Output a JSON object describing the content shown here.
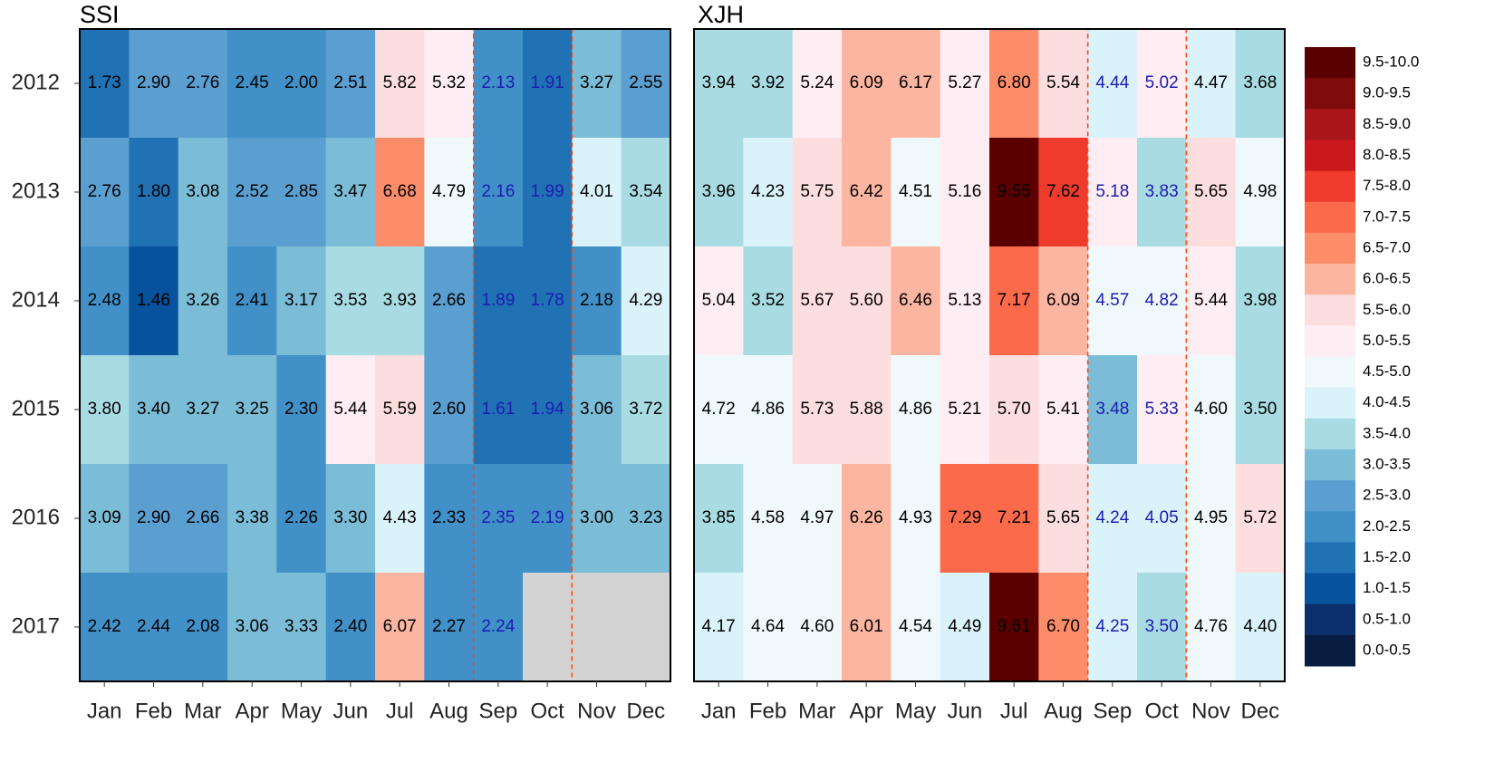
{
  "chart_data": [
    {
      "type": "heatmap",
      "title": "SSI",
      "x": [
        "Jan",
        "Feb",
        "Mar",
        "Apr",
        "May",
        "Jun",
        "Jul",
        "Aug",
        "Sep",
        "Oct",
        "Nov",
        "Dec"
      ],
      "y": [
        "2012",
        "2013",
        "2014",
        "2015",
        "2016",
        "2017"
      ],
      "values": [
        [
          1.73,
          2.9,
          2.76,
          2.45,
          2.0,
          2.51,
          5.82,
          5.32,
          2.13,
          1.91,
          3.27,
          2.55
        ],
        [
          2.76,
          1.8,
          3.08,
          2.52,
          2.85,
          3.47,
          6.68,
          4.79,
          2.16,
          1.99,
          4.01,
          3.54
        ],
        [
          2.48,
          1.46,
          3.26,
          2.41,
          3.17,
          3.53,
          3.93,
          2.66,
          1.89,
          1.78,
          2.18,
          4.29
        ],
        [
          3.8,
          3.4,
          3.27,
          3.25,
          2.3,
          5.44,
          5.59,
          2.6,
          1.61,
          1.94,
          3.06,
          3.72
        ],
        [
          3.09,
          2.9,
          2.66,
          3.38,
          2.26,
          3.3,
          4.43,
          2.33,
          2.35,
          2.19,
          3.0,
          3.23
        ],
        [
          2.42,
          2.44,
          2.08,
          3.06,
          3.33,
          2.4,
          6.07,
          2.27,
          2.24,
          null,
          null,
          null
        ]
      ],
      "value_labels": [
        [
          "1.73",
          "2.90",
          "2.76",
          "2.45",
          "2.00",
          "2.51",
          "5.82",
          "5.32",
          "2.13",
          "1.91",
          "3.27",
          "2.55"
        ],
        [
          "2.76",
          "1.80",
          "3.08",
          "2.52",
          "2.85",
          "3.47",
          "6.68",
          "4.79",
          "2.16",
          "1.99",
          "4.01",
          "3.54"
        ],
        [
          "2.48",
          "1.46",
          "3.26",
          "2.41",
          "3.17",
          "3.53",
          "3.93",
          "2.66",
          "1.89",
          "1.78",
          "2.18",
          "4.29"
        ],
        [
          "3.80",
          "3.40",
          "3.27",
          "3.25",
          "2.30",
          "5.44",
          "5.59",
          "2.60",
          "1.61",
          "1.94",
          "3.06",
          "3.72"
        ],
        [
          "3.09",
          "2.90",
          "2.66",
          "3.38",
          "2.26",
          "3.30",
          "4.43",
          "2.33",
          "2.35",
          "2.19",
          "3.00",
          "3.23"
        ],
        [
          "2.42",
          "2.44",
          "2.08",
          "3.06",
          "3.33",
          "2.40",
          "6.07",
          "2.27",
          "2.24",
          null,
          null,
          null
        ]
      ]
    },
    {
      "type": "heatmap",
      "title": "XJH",
      "x": [
        "Jan",
        "Feb",
        "Mar",
        "Apr",
        "May",
        "Jun",
        "Jul",
        "Aug",
        "Sep",
        "Oct",
        "Nov",
        "Dec"
      ],
      "values": [
        [
          3.94,
          3.92,
          5.24,
          6.09,
          6.17,
          5.27,
          6.8,
          5.54,
          4.44,
          5.02,
          4.47,
          3.68
        ],
        [
          3.96,
          4.23,
          5.75,
          6.42,
          4.51,
          5.16,
          9.55,
          7.62,
          5.18,
          3.83,
          5.65,
          4.98
        ],
        [
          5.04,
          3.52,
          5.67,
          5.6,
          6.46,
          5.13,
          7.17,
          6.09,
          4.57,
          4.82,
          5.44,
          3.98
        ],
        [
          4.72,
          4.86,
          5.73,
          5.88,
          4.86,
          5.21,
          5.7,
          5.41,
          3.48,
          5.33,
          4.6,
          3.5
        ],
        [
          3.85,
          4.58,
          4.97,
          6.26,
          4.93,
          7.29,
          7.21,
          5.65,
          4.24,
          4.05,
          4.95,
          5.72
        ],
        [
          4.17,
          4.64,
          4.6,
          6.01,
          4.54,
          4.49,
          9.61,
          6.7,
          4.25,
          3.5,
          4.76,
          4.4
        ]
      ],
      "value_labels": [
        [
          "3.94",
          "3.92",
          "5.24",
          "6.09",
          "6.17",
          "5.27",
          "6.80",
          "5.54",
          "4.44",
          "5.02",
          "4.47",
          "3.68"
        ],
        [
          "3.96",
          "4.23",
          "5.75",
          "6.42",
          "4.51",
          "5.16",
          "9.55",
          "7.62",
          "5.18",
          "3.83",
          "5.65",
          "4.98"
        ],
        [
          "5.04",
          "3.52",
          "5.67",
          "5.60",
          "6.46",
          "5.13",
          "7.17",
          "6.09",
          "4.57",
          "4.82",
          "5.44",
          "3.98"
        ],
        [
          "4.72",
          "4.86",
          "5.73",
          "5.88",
          "4.86",
          "5.21",
          "5.70",
          "5.41",
          "3.48",
          "5.33",
          "4.60",
          "3.50"
        ],
        [
          "3.85",
          "4.58",
          "4.97",
          "6.26",
          "4.93",
          "7.29",
          "7.21",
          "5.65",
          "4.24",
          "4.05",
          "4.95",
          "5.72"
        ],
        [
          "4.17",
          "4.64",
          "4.60",
          "6.01",
          "4.54",
          "4.49",
          "9.61",
          "6.70",
          "4.25",
          "3.50",
          "4.76",
          "4.40"
        ]
      ]
    }
  ],
  "color_scale": [
    {
      "label": "9.5-10.0",
      "color": "#5a0000"
    },
    {
      "label": "9.0-9.5",
      "color": "#7f0c0c"
    },
    {
      "label": "8.5-9.0",
      "color": "#a8151b"
    },
    {
      "label": "8.0-8.5",
      "color": "#cb181d"
    },
    {
      "label": "7.5-8.0",
      "color": "#ee3b2c"
    },
    {
      "label": "7.0-7.5",
      "color": "#fb6a4a"
    },
    {
      "label": "6.5-7.0",
      "color": "#fc8d6a"
    },
    {
      "label": "6.0-6.5",
      "color": "#fcb5a0"
    },
    {
      "label": "5.5-6.0",
      "color": "#fddede"
    },
    {
      "label": "5.0-5.5",
      "color": "#feeef3"
    },
    {
      "label": "4.5-5.0",
      "color": "#eff9fb"
    },
    {
      "label": "4.0-4.5",
      "color": "#daf2f9"
    },
    {
      "label": "3.5-4.0",
      "color": "#a9dbe3"
    },
    {
      "label": "3.0-3.5",
      "color": "#7bbcd6"
    },
    {
      "label": "2.5-3.0",
      "color": "#5b9fd0"
    },
    {
      "label": "2.0-2.5",
      "color": "#4190c8"
    },
    {
      "label": "1.5-2.0",
      "color": "#2171b5"
    },
    {
      "label": "1.0-1.5",
      "color": "#08519c"
    },
    {
      "label": "0.5-1.0",
      "color": "#0c2f6b"
    },
    {
      "label": "0.0-0.5",
      "color": "#081d40"
    }
  ]
}
